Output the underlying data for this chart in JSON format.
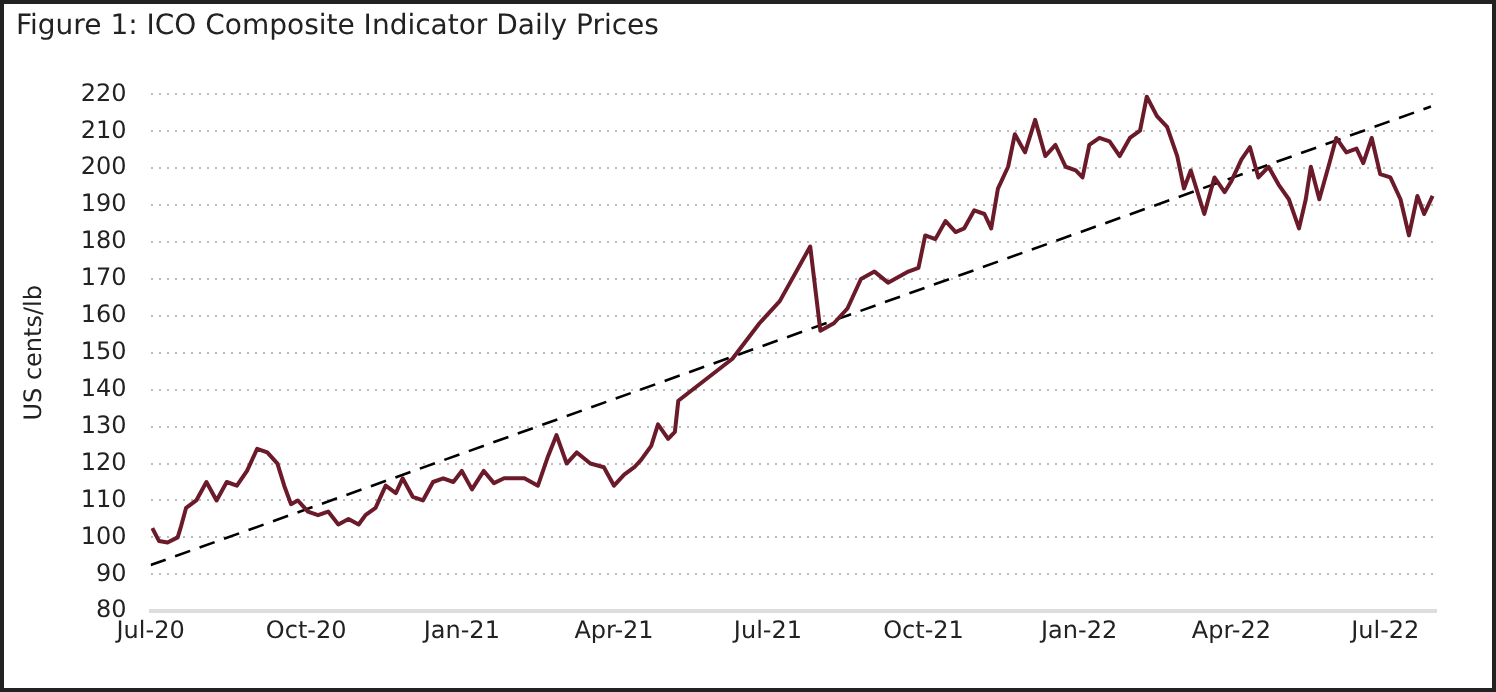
{
  "chart_data": {
    "type": "line",
    "title": "Figure 1: ICO Composite Indicator Daily Prices",
    "ylabel": "US cents/lb",
    "xlim": [
      "2020-07-01",
      "2022-07-31"
    ],
    "xticks": [
      {
        "value": "2020-07-01",
        "label": "Jul-20"
      },
      {
        "value": "2020-10-01",
        "label": "Oct-20"
      },
      {
        "value": "2021-01-01",
        "label": "Jan-21"
      },
      {
        "value": "2021-04-01",
        "label": "Apr-21"
      },
      {
        "value": "2021-07-01",
        "label": "Jul-21"
      },
      {
        "value": "2021-10-01",
        "label": "Oct-21"
      },
      {
        "value": "2022-01-01",
        "label": "Jan-22"
      },
      {
        "value": "2022-04-01",
        "label": "Apr-22"
      },
      {
        "value": "2022-07-01",
        "label": "Jul-22"
      }
    ],
    "ylim": [
      80,
      220
    ],
    "yticks": [
      80,
      90,
      100,
      110,
      120,
      130,
      140,
      150,
      160,
      170,
      180,
      190,
      200,
      210,
      220
    ],
    "grid": "y",
    "legend": false,
    "marker": "none",
    "series": [
      {
        "color": "#6b1a2a",
        "line_style": "solid",
        "x": [
          "2020-07-02",
          "2020-07-06",
          "2020-07-11",
          "2020-07-17",
          "2020-07-19",
          "2020-07-22",
          "2020-07-28",
          "2020-08-03",
          "2020-08-09",
          "2020-08-15",
          "2020-08-21",
          "2020-08-27",
          "2020-09-02",
          "2020-09-08",
          "2020-09-14",
          "2020-09-18",
          "2020-09-22",
          "2020-09-26",
          "2020-10-02",
          "2020-10-08",
          "2020-10-14",
          "2020-10-20",
          "2020-10-26",
          "2020-11-01",
          "2020-11-05",
          "2020-11-11",
          "2020-11-17",
          "2020-11-23",
          "2020-11-27",
          "2020-12-03",
          "2020-12-09",
          "2020-12-15",
          "2020-12-21",
          "2020-12-27",
          "2021-01-01",
          "2021-01-07",
          "2021-01-14",
          "2021-01-20",
          "2021-01-26",
          "2021-02-07",
          "2021-02-15",
          "2021-02-21",
          "2021-02-26",
          "2021-03-04",
          "2021-03-10",
          "2021-03-18",
          "2021-03-26",
          "2021-04-01",
          "2021-04-07",
          "2021-04-13",
          "2021-04-17",
          "2021-04-23",
          "2021-04-27",
          "2021-05-03",
          "2021-05-07",
          "2021-05-09",
          "2021-06-10",
          "2021-06-26",
          "2021-07-08",
          "2021-07-26",
          "2021-08-01",
          "2021-08-09",
          "2021-08-17",
          "2021-08-25",
          "2021-09-02",
          "2021-09-10",
          "2021-09-22",
          "2021-09-28",
          "2021-10-02",
          "2021-10-08",
          "2021-10-14",
          "2021-10-20",
          "2021-10-25",
          "2021-10-31",
          "2021-11-06",
          "2021-11-10",
          "2021-11-14",
          "2021-11-20",
          "2021-11-24",
          "2021-11-30",
          "2021-12-06",
          "2021-12-12",
          "2021-12-18",
          "2021-12-24",
          "2021-12-30",
          "2022-01-03",
          "2022-01-07",
          "2022-01-13",
          "2022-01-19",
          "2022-01-25",
          "2022-01-31",
          "2022-02-06",
          "2022-02-10",
          "2022-02-16",
          "2022-02-22",
          "2022-02-28",
          "2022-03-04",
          "2022-03-08",
          "2022-03-12",
          "2022-03-16",
          "2022-03-22",
          "2022-03-28",
          "2022-04-01",
          "2022-04-07",
          "2022-04-12",
          "2022-04-17",
          "2022-04-23",
          "2022-04-29",
          "2022-05-05",
          "2022-05-11",
          "2022-05-15",
          "2022-05-18",
          "2022-05-23",
          "2022-05-29",
          "2022-06-02",
          "2022-06-08",
          "2022-06-14",
          "2022-06-18",
          "2022-06-23",
          "2022-06-28",
          "2022-07-04",
          "2022-07-10",
          "2022-07-15",
          "2022-07-20",
          "2022-07-24",
          "2022-07-29"
        ],
        "values": [
          102.5,
          99,
          98.6,
          100,
          103,
          108,
          110,
          115,
          110,
          115,
          114,
          118,
          124,
          123,
          120,
          114,
          109,
          110,
          107,
          106,
          107,
          103.5,
          105,
          103.5,
          106,
          108,
          114,
          112,
          116,
          111,
          110,
          115,
          116,
          115,
          118,
          113,
          118,
          114.7,
          116,
          116,
          114,
          122,
          127.7,
          120,
          123,
          120,
          119,
          114,
          117,
          119,
          121,
          124.8,
          130.6,
          126.7,
          128.6,
          137,
          148.4,
          158,
          164,
          178.8,
          156,
          158,
          162,
          170,
          172,
          169,
          172,
          173,
          181.8,
          180.8,
          185.7,
          182.7,
          183.7,
          188.6,
          187.6,
          183.7,
          194.5,
          200.4,
          209.2,
          204.3,
          213.1,
          203.3,
          206.3,
          200.4,
          199.4,
          197.5,
          206.3,
          208.2,
          207.3,
          203.3,
          208.2,
          210.2,
          219.4,
          214.1,
          211.2,
          203.3,
          194.5,
          199.4,
          193.5,
          187.6,
          197.5,
          193.5,
          196.5,
          202.4,
          205.7,
          197.5,
          200.4,
          195.5,
          191.6,
          183.7,
          191.6,
          200.4,
          191.6,
          201.4,
          208.2,
          204.3,
          205.3,
          201.4,
          208.2,
          198.4,
          197.5,
          191.6,
          181.8,
          192.5,
          187.6,
          192.5
        ]
      },
      {
        "color": "#000000",
        "line_style": "dashed",
        "x": [
          "2020-07-01",
          "2022-07-28"
        ],
        "values": [
          92.5,
          216.7
        ]
      }
    ]
  }
}
